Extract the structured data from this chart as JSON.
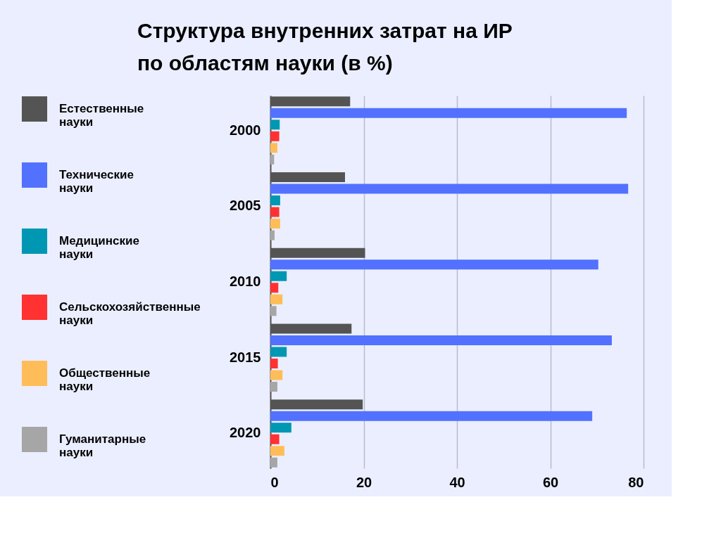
{
  "chart_data": {
    "type": "bar",
    "orientation": "horizontal",
    "title": "Структура внутренних затрат на ИР по областям науки (в %)",
    "categories": [
      "2000",
      "2005",
      "2010",
      "2015",
      "2020"
    ],
    "series": [
      {
        "name": "Естественные науки",
        "color": "#545454",
        "values": [
          17.1,
          16.0,
          20.3,
          17.4,
          19.8
        ]
      },
      {
        "name": "Технические науки",
        "color": "#5271ff",
        "values": [
          76.4,
          76.7,
          70.3,
          73.2,
          69.0
        ]
      },
      {
        "name": "Медицинские науки",
        "color": "#0097b2",
        "values": [
          2.0,
          2.1,
          3.5,
          3.5,
          4.5
        ]
      },
      {
        "name": "Сельскохозяйственные науки",
        "color": "#ff3131",
        "values": [
          1.9,
          1.9,
          1.7,
          1.6,
          1.9
        ]
      },
      {
        "name": "Общественные науки",
        "color": "#ffbd59",
        "values": [
          1.5,
          2.1,
          2.6,
          2.6,
          3.0
        ]
      },
      {
        "name": "Гуманитарные науки",
        "color": "#a6a6a6",
        "values": [
          0.8,
          0.9,
          1.3,
          1.5,
          1.5
        ]
      }
    ],
    "xlim": [
      0,
      80
    ],
    "xticks": [
      0,
      20,
      40,
      60,
      80
    ],
    "grid": "x",
    "legend": "left"
  }
}
